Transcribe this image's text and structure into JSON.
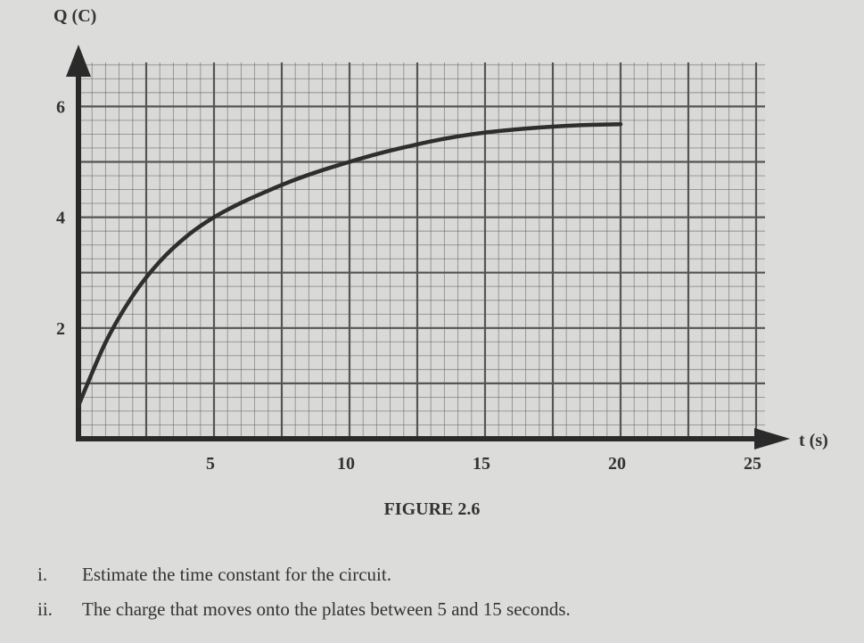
{
  "chart_data": {
    "type": "line",
    "xlabel": "t (s)",
    "ylabel": "Q (C)",
    "x_ticks": [
      5,
      10,
      15,
      20,
      25
    ],
    "y_ticks": [
      2,
      4,
      6
    ],
    "xlim": [
      0,
      26
    ],
    "ylim": [
      0,
      7
    ],
    "grid": true,
    "series": [
      {
        "x": [
          0,
          1,
          2,
          3,
          4,
          5,
          6,
          7,
          8,
          9,
          10,
          11,
          12,
          13,
          14,
          15,
          16,
          17,
          18,
          19,
          20
        ],
        "y": [
          0.6,
          1.74,
          2.58,
          3.2,
          3.66,
          4.0,
          4.26,
          4.48,
          4.68,
          4.85,
          5.0,
          5.14,
          5.26,
          5.37,
          5.46,
          5.53,
          5.58,
          5.62,
          5.65,
          5.67,
          5.68
        ]
      }
    ]
  },
  "caption": "FIGURE 2.6",
  "questions": [
    {
      "num": "i.",
      "text": "Estimate the time constant for the circuit."
    },
    {
      "num": "ii.",
      "text": "The charge that moves onto the plates between 5 and 15 seconds."
    }
  ],
  "colors": {
    "grid": "#555555",
    "axis": "#2a2a2a",
    "curve": "#2e2e2e",
    "paper": "#dcdcda"
  }
}
